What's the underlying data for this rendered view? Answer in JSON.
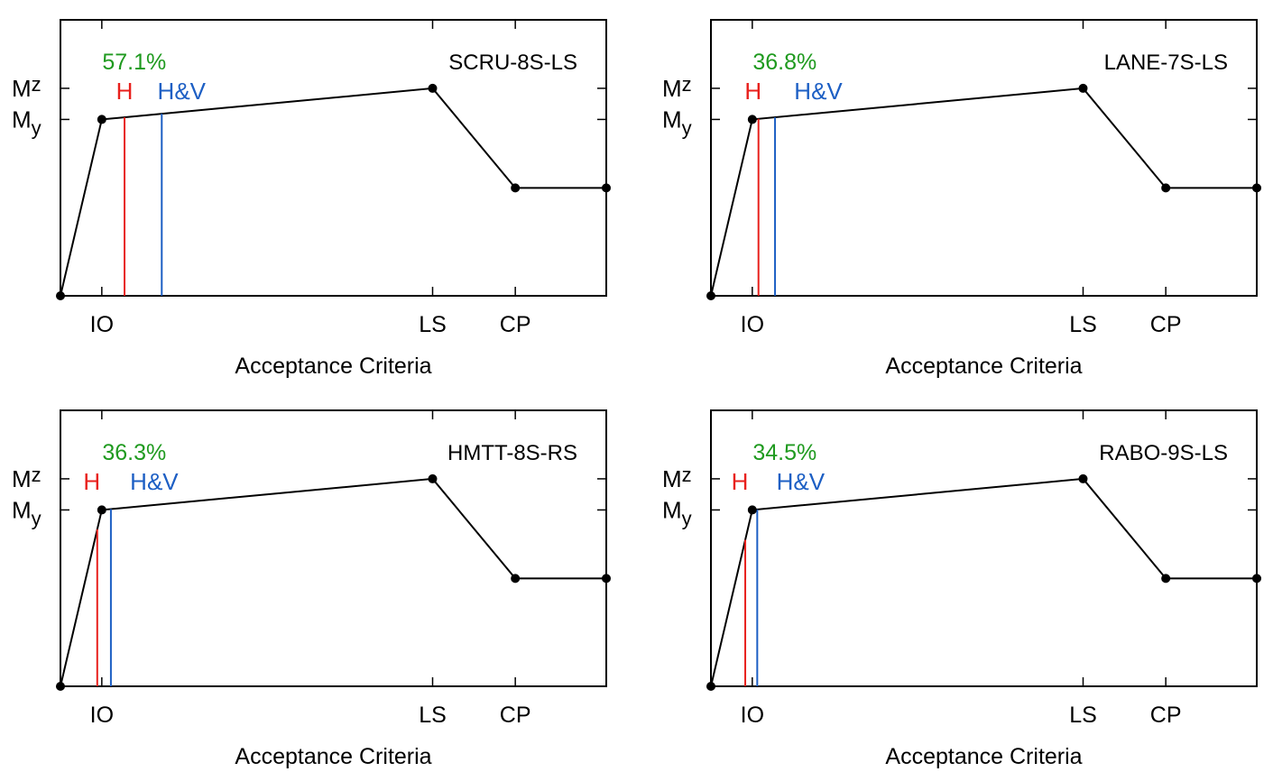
{
  "chart_data": [
    {
      "type": "line",
      "title": "SCRU-8S-LS",
      "xlabel": "Acceptance Criteria",
      "x_ticks": [
        "IO",
        "LS",
        "CP"
      ],
      "y_ticks": [
        {
          "base": "M",
          "sub": "z"
        },
        {
          "base": "M",
          "sub": "y"
        }
      ],
      "x": [
        0,
        1,
        9,
        11,
        13.2
      ],
      "y": [
        0,
        0.85,
        1.0,
        0.52,
        0.52
      ],
      "xlim": [
        0,
        13.2
      ],
      "ylim": [
        0,
        1.33
      ],
      "markers": [
        {
          "label": "H",
          "x": 1.55,
          "color": "#e8201c"
        },
        {
          "label": "H&V",
          "x": 2.45,
          "color": "#1d5fc4"
        }
      ],
      "percentage": {
        "text": "57.1%",
        "color": "#1f9a1f"
      }
    },
    {
      "type": "line",
      "title": "LANE-7S-LS",
      "xlabel": "Acceptance Criteria",
      "x_ticks": [
        "IO",
        "LS",
        "CP"
      ],
      "y_ticks": [
        {
          "base": "M",
          "sub": "z"
        },
        {
          "base": "M",
          "sub": "y"
        }
      ],
      "x": [
        0,
        1,
        9,
        11,
        13.2
      ],
      "y": [
        0,
        0.85,
        1.0,
        0.52,
        0.52
      ],
      "xlim": [
        0,
        13.2
      ],
      "ylim": [
        0,
        1.33
      ],
      "markers": [
        {
          "label": "H",
          "x": 1.15,
          "color": "#e8201c"
        },
        {
          "label": "H&V",
          "x": 1.55,
          "color": "#1d5fc4"
        }
      ],
      "percentage": {
        "text": "36.8%",
        "color": "#1f9a1f"
      }
    },
    {
      "type": "line",
      "title": "HMTT-8S-RS",
      "xlabel": "Acceptance Criteria",
      "x_ticks": [
        "IO",
        "LS",
        "CP"
      ],
      "y_ticks": [
        {
          "base": "M",
          "sub": "z"
        },
        {
          "base": "M",
          "sub": "y"
        }
      ],
      "x": [
        0,
        1,
        9,
        11,
        13.2
      ],
      "y": [
        0,
        0.85,
        1.0,
        0.52,
        0.52
      ],
      "xlim": [
        0,
        13.2
      ],
      "ylim": [
        0,
        1.33
      ],
      "markers": [
        {
          "label": "H",
          "x": 0.89,
          "color": "#e8201c"
        },
        {
          "label": "H&V",
          "x": 1.22,
          "color": "#1d5fc4"
        }
      ],
      "percentage": {
        "text": "36.3%",
        "color": "#1f9a1f"
      }
    },
    {
      "type": "line",
      "title": "RABO-9S-LS",
      "xlabel": "Acceptance Criteria",
      "x_ticks": [
        "IO",
        "LS",
        "CP"
      ],
      "y_ticks": [
        {
          "base": "M",
          "sub": "z"
        },
        {
          "base": "M",
          "sub": "y"
        }
      ],
      "x": [
        0,
        1,
        9,
        11,
        13.2
      ],
      "y": [
        0,
        0.85,
        1.0,
        0.52,
        0.52
      ],
      "xlim": [
        0,
        13.2
      ],
      "ylim": [
        0,
        1.33
      ],
      "markers": [
        {
          "label": "H",
          "x": 0.83,
          "color": "#e8201c"
        },
        {
          "label": "H&V",
          "x": 1.12,
          "color": "#1d5fc4"
        }
      ],
      "percentage": {
        "text": "34.5%",
        "color": "#1f9a1f"
      }
    }
  ]
}
